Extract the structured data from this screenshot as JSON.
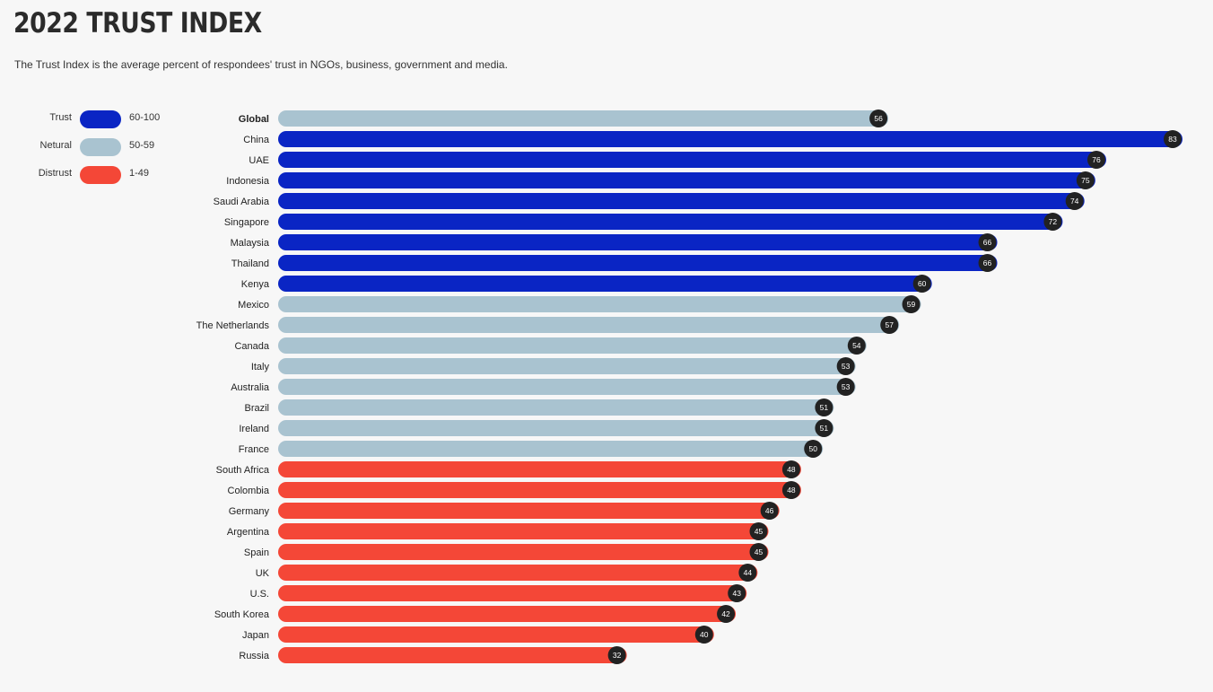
{
  "title": "2022 TRUST INDEX",
  "subtitle": "The Trust Index is the average percent of respondees' trust in NGOs, business, government and media.",
  "legend": [
    {
      "label": "Trust",
      "range": "60-100",
      "color": "#0a25c4"
    },
    {
      "label": "Netural",
      "range": "50-59",
      "color": "#a9c3d0"
    },
    {
      "label": "Distrust",
      "range": "1-49",
      "color": "#f44737"
    }
  ],
  "colors": {
    "trust": "#0a25c4",
    "neutral": "#a9c3d0",
    "distrust": "#f44737",
    "value_badge": "#222222"
  },
  "chart_data": {
    "type": "bar",
    "orientation": "horizontal",
    "categories": [
      "Global",
      "China",
      "UAE",
      "Indonesia",
      "Saudi Arabia",
      "Singapore",
      "Malaysia",
      "Thailand",
      "Kenya",
      "Mexico",
      "The Netherlands",
      "Canada",
      "Italy",
      "Australia",
      "Brazil",
      "Ireland",
      "France",
      "South Africa",
      "Colombia",
      "Germany",
      "Argentina",
      "Spain",
      "UK",
      "U.S.",
      "South Korea",
      "Japan",
      "Russia"
    ],
    "values": [
      56,
      83,
      76,
      75,
      74,
      72,
      66,
      66,
      60,
      59,
      57,
      54,
      53,
      53,
      51,
      51,
      50,
      48,
      48,
      46,
      45,
      45,
      44,
      43,
      42,
      40,
      32
    ],
    "xlim": [
      0,
      83
    ],
    "grid": false,
    "legend_position": "top-left"
  }
}
